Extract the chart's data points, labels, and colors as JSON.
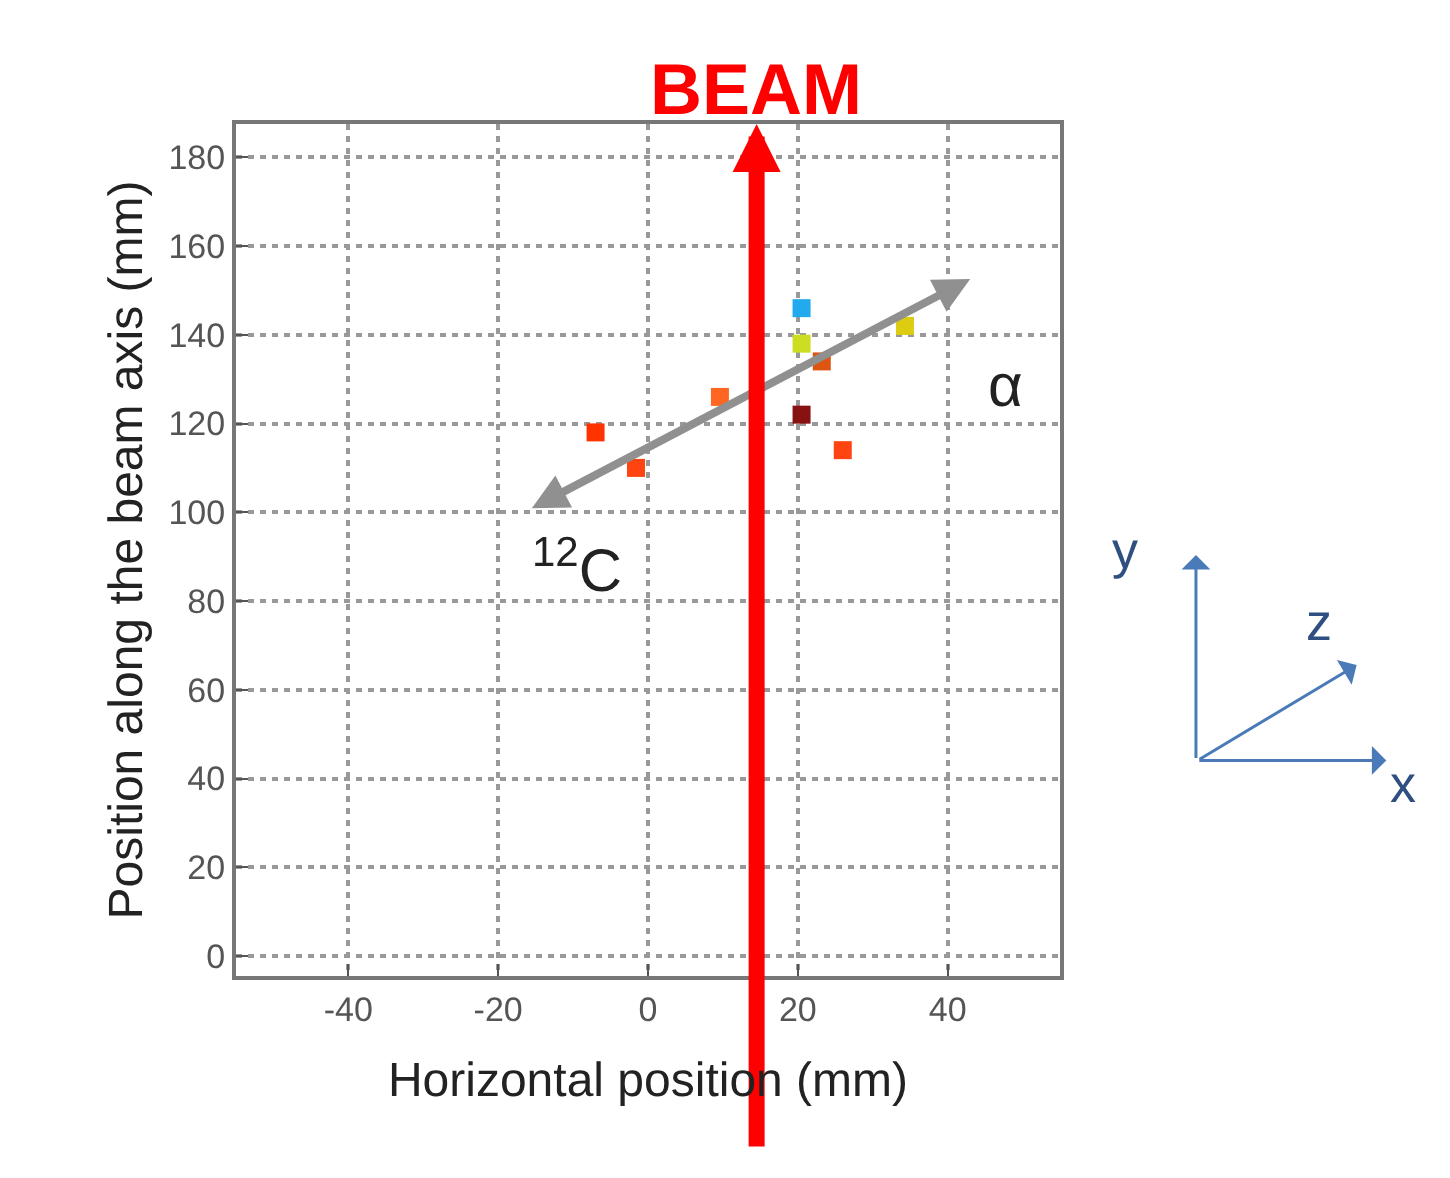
{
  "chart_data": {
    "type": "scatter",
    "xlabel": "Horizontal position (mm)",
    "ylabel": "Position along the beam axis (mm)",
    "xlim": [
      -55,
      55
    ],
    "ylim": [
      -4.5,
      187.5
    ],
    "xticks": [
      -40,
      -20,
      0,
      20,
      40
    ],
    "yticks": [
      0,
      20,
      40,
      60,
      80,
      100,
      120,
      140,
      160,
      180
    ],
    "grid": true,
    "marker": "square",
    "series": [
      {
        "x": [
          -7,
          -1.6,
          9.6,
          20.5,
          20.5,
          23.2,
          20.5,
          26,
          34.3
        ],
        "values": [
          118,
          110,
          126,
          146,
          138,
          134,
          122,
          114,
          142
        ],
        "colors": [
          "#ff3300",
          "#ff4411",
          "#ff6622",
          "#22aaee",
          "#ccdd22",
          "#dd5511",
          "#881111",
          "#ff4411",
          "#ddcc11"
        ]
      }
    ],
    "ref_lines": [
      {
        "axis": "x",
        "value": 14.5,
        "label": "BEAM",
        "color": "#ff0000"
      }
    ],
    "annotations": [
      "α",
      "$^{12}$C",
      "y",
      "z",
      "x"
    ]
  }
}
